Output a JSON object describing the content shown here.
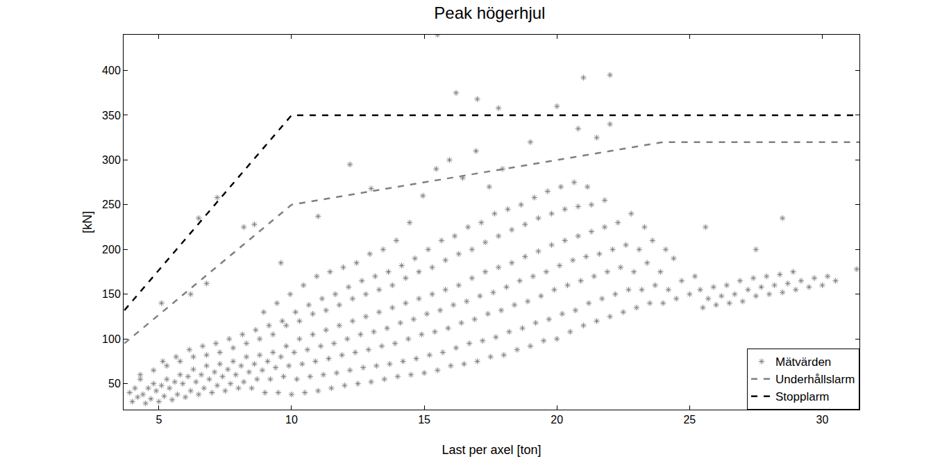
{
  "chart_data": {
    "type": "scatter",
    "title": "Peak högerhjul",
    "x_label": "Last per axel [ton]",
    "y_label": "[kN]",
    "xlim": [
      3.67,
      31.4
    ],
    "ylim": [
      21,
      440
    ],
    "xticks": [
      5,
      10,
      15,
      20,
      25,
      30
    ],
    "yticks": [
      50,
      100,
      150,
      200,
      250,
      300,
      350,
      400
    ],
    "grid": false,
    "legend": "bottom right",
    "series": [
      {
        "name": "Mätvärden",
        "type": "scatter",
        "color": "#808080",
        "marker": "asterisk",
        "x": [
          4.0,
          4.2,
          3.9,
          4.1,
          4.3,
          4.5,
          4.7,
          4.4,
          4.6,
          4.8,
          4.3,
          5.0,
          5.2,
          4.9,
          5.1,
          5.3,
          4.8,
          5.15,
          5.5,
          5.7,
          5.4,
          5.6,
          5.8,
          5.3,
          5.65,
          6.0,
          6.2,
          5.9,
          6.1,
          6.3,
          5.8,
          6.15,
          6.5,
          6.7,
          6.4,
          6.6,
          6.8,
          6.3,
          6.65,
          7.0,
          7.2,
          6.9,
          7.1,
          7.3,
          6.8,
          7.15,
          7.5,
          7.7,
          7.4,
          7.6,
          7.8,
          7.3,
          7.65,
          8.0,
          8.2,
          7.9,
          8.1,
          8.3,
          7.8,
          8.15,
          8.5,
          8.7,
          8.4,
          8.6,
          8.8,
          8.3,
          8.65,
          9.0,
          9.2,
          8.9,
          9.1,
          9.3,
          8.8,
          9.15,
          8.95,
          9.5,
          9.7,
          9.4,
          9.6,
          9.8,
          9.3,
          9.65,
          9.45,
          10.0,
          10.2,
          9.9,
          10.1,
          10.3,
          9.8,
          10.15,
          9.95,
          10.5,
          10.7,
          10.4,
          10.6,
          10.8,
          10.3,
          10.65,
          10.45,
          11.0,
          11.2,
          10.9,
          11.1,
          11.3,
          10.8,
          11.15,
          10.95,
          11.5,
          11.7,
          11.4,
          11.6,
          11.8,
          11.3,
          11.65,
          11.45,
          12.0,
          12.2,
          11.9,
          12.1,
          12.3,
          11.8,
          12.15,
          11.95,
          12.5,
          12.7,
          12.4,
          12.6,
          12.8,
          12.3,
          12.65,
          12.45,
          13.0,
          13.2,
          12.9,
          13.1,
          13.3,
          12.8,
          13.15,
          12.95,
          13.5,
          13.7,
          13.4,
          13.6,
          13.8,
          13.3,
          13.65,
          13.45,
          14.0,
          14.2,
          13.9,
          14.1,
          14.3,
          13.8,
          14.15,
          13.95,
          14.5,
          14.7,
          14.4,
          14.6,
          14.8,
          14.3,
          14.65,
          14.45,
          15.0,
          15.2,
          14.9,
          15.1,
          15.3,
          14.8,
          15.15,
          14.95,
          15.5,
          15.7,
          15.4,
          15.6,
          15.8,
          15.3,
          15.65,
          15.45,
          16.0,
          16.2,
          15.9,
          16.1,
          16.3,
          15.8,
          16.15,
          15.95,
          16.5,
          16.7,
          16.4,
          16.6,
          16.8,
          16.3,
          16.65,
          16.45,
          17.0,
          17.2,
          16.9,
          17.1,
          17.3,
          16.8,
          17.15,
          16.95,
          17.5,
          17.7,
          17.4,
          17.6,
          17.8,
          17.3,
          17.65,
          17.45,
          18.0,
          18.2,
          17.9,
          18.1,
          18.3,
          17.8,
          18.15,
          17.95,
          18.5,
          18.7,
          18.4,
          18.6,
          18.8,
          18.3,
          18.65,
          19.0,
          19.2,
          18.9,
          19.1,
          19.3,
          18.8,
          19.15,
          19.5,
          19.7,
          19.4,
          19.6,
          19.8,
          19.3,
          19.65,
          20.0,
          20.2,
          19.9,
          20.1,
          20.3,
          19.8,
          20.15,
          20.5,
          20.7,
          20.4,
          20.6,
          20.8,
          20.3,
          20.65,
          21.0,
          21.2,
          20.9,
          21.1,
          21.3,
          20.8,
          21.15,
          21.5,
          21.7,
          21.4,
          21.6,
          21.8,
          21.3,
          22.0,
          22.2,
          21.9,
          22.1,
          22.3,
          21.8,
          22.5,
          22.7,
          22.4,
          22.6,
          22.8,
          23.0,
          23.2,
          22.9,
          23.1,
          23.3,
          23.5,
          23.7,
          23.4,
          23.6,
          24.0,
          24.2,
          23.9,
          24.1,
          24.5,
          24.7,
          24.4,
          25.0,
          25.2,
          25.5,
          25.7,
          25.4,
          26.0,
          26.2,
          25.9,
          26.5,
          26.7,
          26.4,
          27.0,
          27.2,
          26.9,
          27.5,
          27.7,
          27.4,
          28.0,
          28.2,
          27.9,
          28.5,
          28.7,
          28.4,
          29.0,
          29.2,
          28.9,
          29.5,
          29.7,
          30.0,
          30.2,
          30.5,
          31.3,
          6.5,
          7.2,
          8.2,
          8.6,
          9.6,
          5.1,
          6.2,
          6.8,
          12.2,
          16.2,
          17.0,
          20.0,
          21.0,
          22.0,
          15.5,
          28.5,
          27.5,
          25.6,
          20.8,
          22.0,
          13.0,
          11.0,
          17.8,
          19.0,
          21.5
        ],
        "values": [
          30,
          35,
          40,
          45,
          55,
          28,
          33,
          38,
          45,
          50,
          60,
          30,
          36,
          42,
          48,
          55,
          65,
          75,
          32,
          38,
          45,
          52,
          60,
          70,
          80,
          35,
          42,
          50,
          58,
          66,
          75,
          88,
          38,
          45,
          52,
          60,
          70,
          80,
          92,
          40,
          48,
          55,
          63,
          72,
          82,
          95,
          42,
          50,
          58,
          66,
          75,
          85,
          100,
          45,
          52,
          60,
          70,
          80,
          90,
          105,
          45,
          55,
          63,
          72,
          82,
          95,
          110,
          40,
          55,
          65,
          75,
          85,
          100,
          115,
          130,
          40,
          58,
          68,
          80,
          92,
          105,
          120,
          140,
          38,
          55,
          70,
          85,
          100,
          115,
          130,
          150,
          40,
          58,
          72,
          88,
          105,
          120,
          138,
          160,
          42,
          60,
          75,
          92,
          110,
          128,
          145,
          170,
          45,
          62,
          78,
          95,
          115,
          132,
          150,
          175,
          48,
          65,
          82,
          100,
          120,
          138,
          158,
          180,
          50,
          68,
          85,
          105,
          125,
          145,
          165,
          185,
          52,
          70,
          88,
          108,
          130,
          150,
          170,
          195,
          55,
          72,
          92,
          112,
          135,
          155,
          175,
          200,
          58,
          75,
          95,
          118,
          140,
          160,
          182,
          210,
          60,
          78,
          100,
          122,
          145,
          168,
          190,
          230,
          62,
          82,
          105,
          128,
          150,
          175,
          200,
          260,
          65,
          85,
          108,
          132,
          155,
          180,
          210,
          290,
          70,
          90,
          112,
          138,
          160,
          188,
          215,
          300,
          72,
          95,
          118,
          142,
          168,
          195,
          225,
          280,
          75,
          98,
          122,
          148,
          175,
          200,
          230,
          310,
          80,
          102,
          128,
          152,
          180,
          208,
          240,
          270,
          82,
          108,
          132,
          158,
          185,
          215,
          245,
          290,
          88,
          112,
          138,
          165,
          192,
          222,
          250,
          92,
          118,
          142,
          170,
          198,
          228,
          258,
          98,
          122,
          148,
          175,
          205,
          235,
          265,
          100,
          128,
          155,
          182,
          210,
          240,
          270,
          108,
          132,
          160,
          188,
          215,
          245,
          275,
          115,
          140,
          165,
          192,
          220,
          248,
          270,
          120,
          145,
          170,
          195,
          225,
          250,
          125,
          150,
          175,
          200,
          230,
          255,
          130,
          155,
          180,
          205,
          240,
          135,
          155,
          175,
          200,
          225,
          140,
          160,
          185,
          210,
          140,
          155,
          175,
          200,
          145,
          165,
          190,
          150,
          170,
          135,
          145,
          155,
          138,
          148,
          158,
          140,
          150,
          160,
          142,
          155,
          165,
          148,
          158,
          168,
          150,
          160,
          170,
          152,
          162,
          172,
          155,
          165,
          175,
          158,
          168,
          160,
          170,
          165,
          178,
          235,
          258,
          225,
          228,
          185,
          140,
          150,
          162,
          295,
          375,
          368,
          360,
          392,
          395,
          440,
          235,
          200,
          225,
          335,
          340,
          268,
          237,
          358,
          320,
          325
        ]
      },
      {
        "name": "Underhållslarm",
        "type": "line",
        "color": "#808080",
        "line_style": "dash",
        "x": [
          3.7,
          10,
          24,
          31.4
        ],
        "values": [
          95,
          250,
          320,
          320
        ]
      },
      {
        "name": "Stopplarm",
        "type": "line",
        "color": "#000000",
        "line_style": "dash",
        "x": [
          3.7,
          10,
          31.4
        ],
        "values": [
          132,
          350,
          350
        ]
      }
    ]
  }
}
